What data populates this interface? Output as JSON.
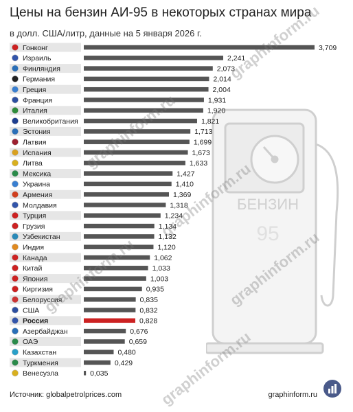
{
  "title": "Цены на бензин АИ-95 в некоторых странах мира",
  "subtitle": "в долл. США/литр, данные на 5 января 2026 г.",
  "source": "Источник: globalpetrolprices.com",
  "site": "graphinform.ru",
  "watermark": "graphinform.ru",
  "pump_label": "БЕНЗИН",
  "pump_grade": "95",
  "colors": {
    "bar": "#555555",
    "highlight": "#cc2222",
    "row_bg": "#e6e6e6",
    "logo": "#4a5a8a"
  },
  "chart_data": {
    "type": "bar",
    "orientation": "horizontal",
    "categories": [
      "Гонконг",
      "Израиль",
      "Финляндия",
      "Германия",
      "Греция",
      "Франция",
      "Италия",
      "Великобритания",
      "Эстония",
      "Латвия",
      "Испания",
      "Литва",
      "Мексика",
      "Украина",
      "Армения",
      "Молдавия",
      "Турция",
      "Грузия",
      "Узбекистан",
      "Индия",
      "Канада",
      "Китай",
      "Япония",
      "Киргизия",
      "Белоруссия",
      "США",
      "Россия",
      "Азербайджан",
      "ОАЭ",
      "Казахстан",
      "Туркмения",
      "Венесуэла"
    ],
    "values": [
      3.709,
      2.241,
      2.073,
      2.014,
      2.004,
      1.931,
      1.92,
      1.821,
      1.713,
      1.699,
      1.673,
      1.633,
      1.427,
      1.41,
      1.369,
      1.318,
      1.234,
      1.134,
      1.132,
      1.12,
      1.062,
      1.033,
      1.003,
      0.935,
      0.835,
      0.832,
      0.828,
      0.676,
      0.659,
      0.48,
      0.429,
      0.035
    ],
    "value_labels": [
      "3,709",
      "2,241",
      "2,073",
      "2,014",
      "2,004",
      "1,931",
      "1,920",
      "1,821",
      "1,713",
      "1,699",
      "1,673",
      "1,633",
      "1,427",
      "1,410",
      "1,369",
      "1,318",
      "1,234",
      "1,134",
      "1,132",
      "1,120",
      "1,062",
      "1,033",
      "1,003",
      "0,935",
      "0,835",
      "0,832",
      "0,828",
      "0,676",
      "0,659",
      "0,480",
      "0,429",
      "0,035"
    ],
    "highlight": "Россия",
    "xlim": [
      0,
      3.709
    ],
    "title": "Цены на бензин АИ-95 в некоторых странах мира",
    "subtitle": "в долл. США/литр, данные на 5 января 2026 г.",
    "legend": "none",
    "grid": false
  }
}
